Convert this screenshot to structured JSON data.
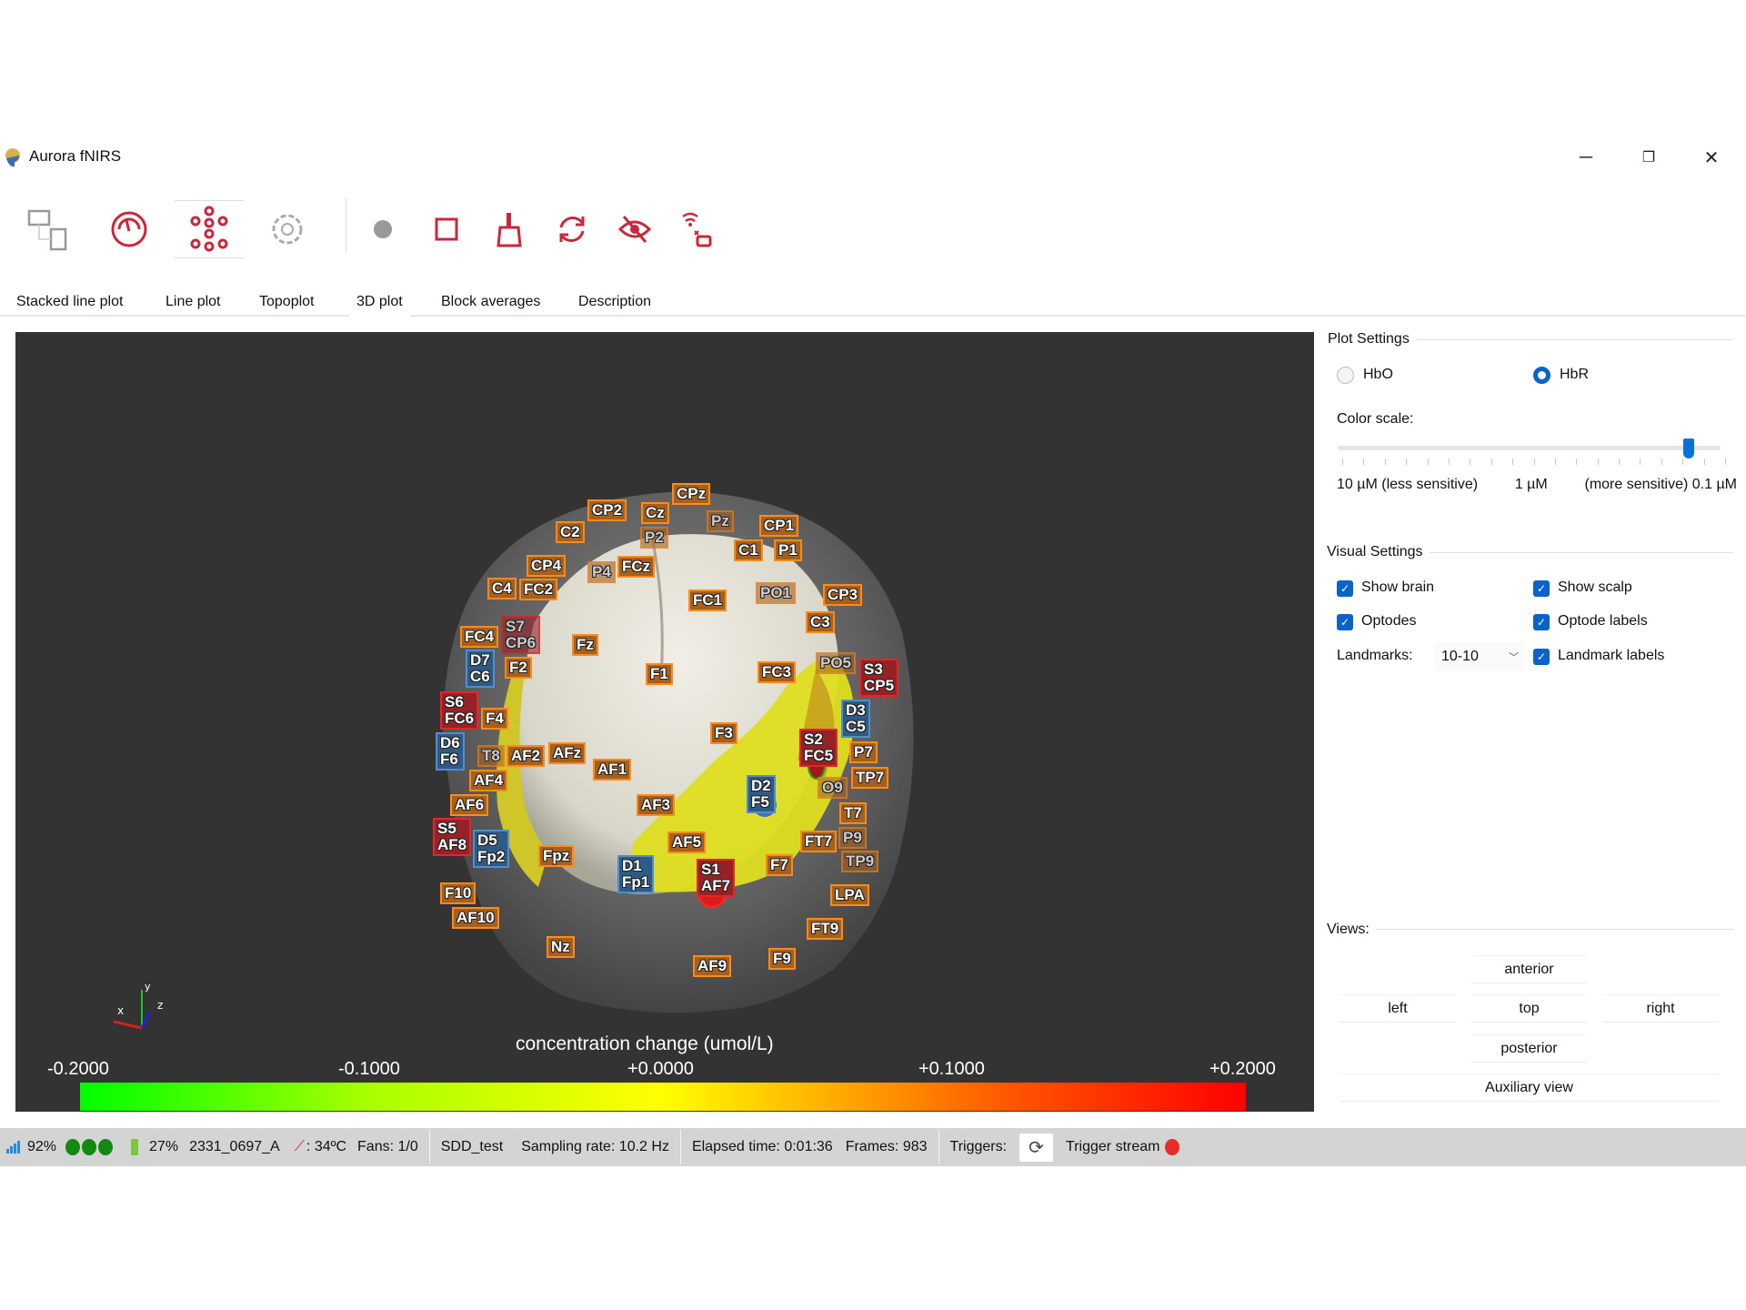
{
  "window": {
    "title": "Aurora fNIRS",
    "controls": [
      "minimize-icon",
      "restore-icon",
      "close-icon"
    ]
  },
  "toolbar": {
    "icons": [
      "window-layout-icon",
      "speedometer-icon",
      "network-nodes-icon",
      "gear-icon",
      "record-dot-icon",
      "stop-square-icon",
      "broom-icon",
      "refresh-icon",
      "eye-off-icon",
      "wireless-disconnect-icon"
    ],
    "accent": "#c8283c",
    "selected": "network-nodes-icon"
  },
  "tabs": [
    {
      "label": "Stacked line plot"
    },
    {
      "label": "Line plot"
    },
    {
      "label": "Topoplot"
    },
    {
      "label": "3D plot",
      "selected": true
    },
    {
      "label": "Block averages"
    },
    {
      "label": "Description"
    }
  ],
  "plot": {
    "labels": [
      {
        "t": "o",
        "l": [
          "CPz"
        ]
      },
      {
        "t": "o",
        "l": [
          "CP2"
        ]
      },
      {
        "t": "o",
        "l": [
          "Cz"
        ]
      },
      {
        "t": "f",
        "l": [
          "P2"
        ]
      },
      {
        "t": "f",
        "l": [
          "Pz"
        ]
      },
      {
        "t": "o",
        "l": [
          "CP1"
        ]
      },
      {
        "t": "o",
        "l": [
          "P1"
        ]
      },
      {
        "t": "o",
        "l": [
          "C1"
        ]
      },
      {
        "t": "o",
        "l": [
          "C2"
        ]
      },
      {
        "t": "o",
        "l": [
          "CP4"
        ]
      },
      {
        "t": "o",
        "l": [
          "FC2"
        ]
      },
      {
        "t": "o",
        "l": [
          "C4"
        ]
      },
      {
        "t": "f",
        "l": [
          "P4"
        ]
      },
      {
        "t": "o",
        "l": [
          "FCz"
        ]
      },
      {
        "t": "o",
        "l": [
          "FC1"
        ]
      },
      {
        "t": "f",
        "l": [
          "PO1"
        ]
      },
      {
        "t": "o",
        "l": [
          "CP3"
        ]
      },
      {
        "t": "o",
        "l": [
          "C3"
        ]
      },
      {
        "t": "rf",
        "l": [
          "S7",
          "CP6"
        ]
      },
      {
        "t": "o",
        "l": [
          "FC4"
        ]
      },
      {
        "t": "b",
        "l": [
          "D7",
          "C6"
        ]
      },
      {
        "t": "o",
        "l": [
          "F2"
        ]
      },
      {
        "t": "o",
        "l": [
          "Fz"
        ]
      },
      {
        "t": "o",
        "l": [
          "F1"
        ]
      },
      {
        "t": "o",
        "l": [
          "FC3"
        ]
      },
      {
        "t": "f",
        "l": [
          "PO5"
        ]
      },
      {
        "t": "r",
        "l": [
          "S3",
          "CP5"
        ]
      },
      {
        "t": "r",
        "l": [
          "S6",
          "FC6"
        ]
      },
      {
        "t": "o",
        "l": [
          "F4"
        ]
      },
      {
        "t": "b",
        "l": [
          "D3",
          "C5"
        ]
      },
      {
        "t": "o",
        "l": [
          "F3"
        ]
      },
      {
        "t": "r",
        "l": [
          "S2",
          "FC5"
        ]
      },
      {
        "t": "o",
        "l": [
          "P7"
        ]
      },
      {
        "t": "b",
        "l": [
          "D6",
          "F6"
        ]
      },
      {
        "t": "f",
        "l": [
          "T8"
        ]
      },
      {
        "t": "o",
        "l": [
          "AF2"
        ]
      },
      {
        "t": "o",
        "l": [
          "AFz"
        ]
      },
      {
        "t": "o",
        "l": [
          "AF1"
        ]
      },
      {
        "t": "o",
        "l": [
          "AF4"
        ]
      },
      {
        "t": "o",
        "l": [
          "TP7"
        ]
      },
      {
        "t": "f",
        "l": [
          "O9"
        ]
      },
      {
        "t": "b",
        "l": [
          "D2",
          "F5"
        ]
      },
      {
        "t": "o",
        "l": [
          "AF3"
        ]
      },
      {
        "t": "o",
        "l": [
          "AF6"
        ]
      },
      {
        "t": "r",
        "l": [
          "S5",
          "AF8"
        ]
      },
      {
        "t": "o",
        "l": [
          "T7"
        ]
      },
      {
        "t": "f",
        "l": [
          "P9"
        ]
      },
      {
        "t": "b",
        "l": [
          "D5",
          "Fp2"
        ]
      },
      {
        "t": "o",
        "l": [
          "AF5"
        ]
      },
      {
        "t": "o",
        "l": [
          "FT7"
        ]
      },
      {
        "t": "f",
        "l": [
          "TP9"
        ]
      },
      {
        "t": "o",
        "l": [
          "Fpz"
        ]
      },
      {
        "t": "b",
        "l": [
          "D1",
          "Fp1"
        ]
      },
      {
        "t": "r",
        "l": [
          "S1",
          "AF7"
        ]
      },
      {
        "t": "o",
        "l": [
          "F7"
        ]
      },
      {
        "t": "o",
        "l": [
          "F10"
        ]
      },
      {
        "t": "o",
        "l": [
          "LPA"
        ]
      },
      {
        "t": "o",
        "l": [
          "AF10"
        ]
      },
      {
        "t": "o",
        "l": [
          "FT9"
        ]
      },
      {
        "t": "o",
        "l": [
          "Nz"
        ]
      },
      {
        "t": "o",
        "l": [
          "F9"
        ]
      },
      {
        "t": "o",
        "l": [
          "AF9"
        ]
      }
    ],
    "axes": {
      "x": "x",
      "y": "y",
      "z": "z"
    },
    "colorbar": {
      "title": "concentration change (umol/L)",
      "ticks": [
        "-0.2000",
        "-0.1000",
        "+0.0000",
        "+0.1000",
        "+0.2000"
      ],
      "range": [
        -0.2,
        0.2
      ],
      "colors": [
        "#00ff00",
        "#ffff00",
        "#ff0000"
      ]
    }
  },
  "settings": {
    "plot_settings": {
      "title": "Plot Settings",
      "hbo": "HbO",
      "hbr": "HbR",
      "selected": "HbR",
      "color_scale_label": "Color scale:",
      "scale_left": "10 µM (less sensitive)",
      "scale_mid": "1 µM",
      "scale_right": "(more sensitive) 0.1 µM",
      "slider_fraction": 0.93
    },
    "visual_settings": {
      "title": "Visual Settings",
      "show_brain": "Show brain",
      "show_scalp": "Show scalp",
      "optodes": "Optodes",
      "optode_labels": "Optode labels",
      "landmarks_label": "Landmarks:",
      "landmarks_value": "10-10",
      "landmark_labels": "Landmark labels"
    },
    "views": {
      "title": "Views:",
      "anterior": "anterior",
      "left": "left",
      "top": "top",
      "right": "right",
      "posterior": "posterior",
      "auxiliary": "Auxiliary view"
    }
  },
  "status": {
    "signal": "92%",
    "battery": "27%",
    "device": "2331_0697_A",
    "temp": ": 34ºC",
    "fans": "Fans: 1/0",
    "config": "SDD_test",
    "sampling": "Sampling rate: 10.2 Hz",
    "elapsed": "Elapsed time: 0:01:36",
    "frames": "Frames: 983",
    "triggers": "Triggers:",
    "trigger_stream": "Trigger stream",
    "colors": {
      "dots": "#118a11",
      "battery": "#7cc83c",
      "trigger": "#e82b2b",
      "signal": "#2a8ad6"
    }
  }
}
